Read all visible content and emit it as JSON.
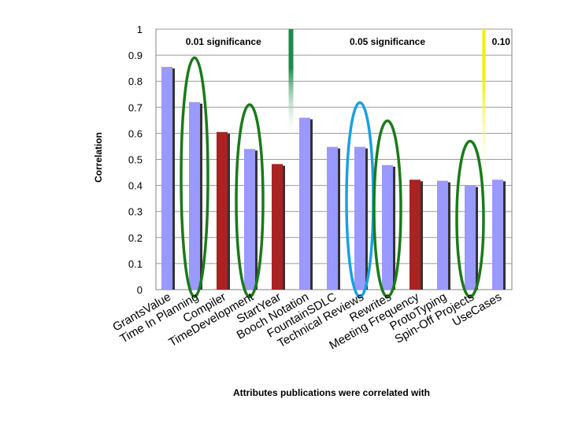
{
  "chart_data": {
    "type": "bar",
    "title": "",
    "xlabel": "Attributes publications were correlated with",
    "ylabel": "Correlation",
    "ylim": [
      0,
      1
    ],
    "yticks": [
      "0",
      "0.1",
      "0.2",
      "0.3",
      "0.4",
      "0.5",
      "0.6",
      "0.7",
      "0.8",
      "0.9",
      "1"
    ],
    "grid": true,
    "categories": [
      "GrantsValue",
      "Time In Planning",
      "Compiler",
      "TimeDevelopment",
      "StartYear",
      "Booch Notation",
      "FountainSDLC",
      "Technical Reviews",
      "Rewrites",
      "Meeting Frequency",
      "ProtoTyping",
      "Spin-Off Projects",
      "UseCases"
    ],
    "values": [
      0.855,
      0.72,
      0.605,
      0.54,
      0.482,
      0.66,
      0.548,
      0.548,
      0.478,
      0.422,
      0.418,
      0.4,
      0.422
    ],
    "bar_colors": [
      "#9999ff",
      "#9999ff",
      "#aa2222",
      "#9999ff",
      "#aa2222",
      "#9999ff",
      "#9999ff",
      "#9999ff",
      "#9999ff",
      "#aa2222",
      "#9999ff",
      "#9999ff",
      "#9999ff"
    ],
    "significance_bands": [
      {
        "label": "0.01 significance",
        "from_category": 0,
        "to_category": 4
      },
      {
        "label": "0.05 significance",
        "from_category": 5,
        "to_category": 11
      },
      {
        "label": "0.10",
        "from_category": 12,
        "to_category": 12
      }
    ],
    "highlight_ovals": [
      {
        "category_index": 1,
        "color": "#1a7a1a"
      },
      {
        "category_index": 3,
        "color": "#1a7a1a"
      },
      {
        "category_index": 7,
        "color": "#1aa0e0"
      },
      {
        "category_index": 8,
        "color": "#1a7a1a"
      },
      {
        "category_index": 11,
        "color": "#1a7a1a"
      }
    ],
    "divider_colors": {
      "first": "#1a8a4a",
      "second": "#f0f000"
    }
  }
}
